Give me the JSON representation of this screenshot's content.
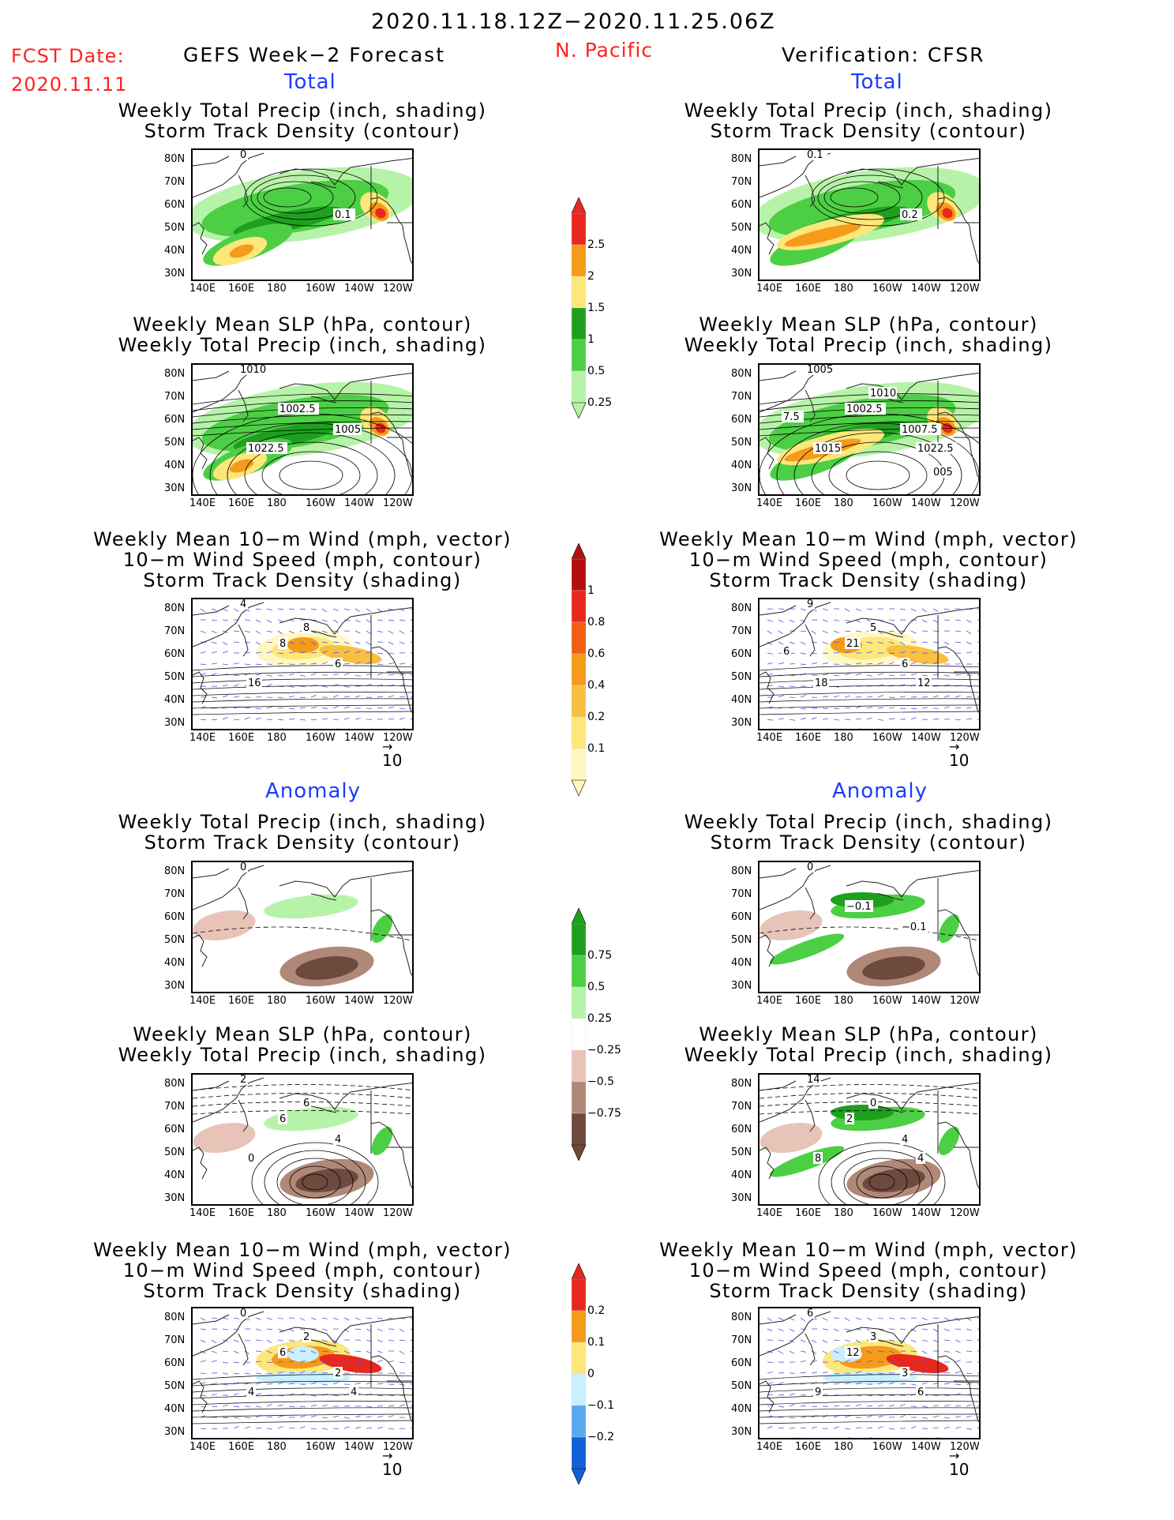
{
  "header": {
    "period": "2020.11.18.12Z−2020.11.25.06Z",
    "fcst_label": "FCST Date:",
    "fcst_date": "2020.11.11",
    "left_title": "GEFS Week−2 Forecast",
    "region": "N. Pacific",
    "right_title": "Verification: CFSR",
    "total_label": "Total",
    "anomaly_label": "Anomaly"
  },
  "titles": {
    "precip_track": [
      "Weekly Total Precip (inch, shading)",
      "Storm Track Density (contour)"
    ],
    "slp_precip": [
      "Weekly Mean SLP (hPa, contour)",
      "Weekly Total Precip (inch, shading)"
    ],
    "wind_track": [
      "Weekly Mean 10−m Wind (mph, vector)",
      "10−m Wind Speed (mph, contour)",
      "Storm Track Density (shading)"
    ]
  },
  "axes": {
    "lat_ticks": [
      "80N",
      "70N",
      "60N",
      "50N",
      "40N",
      "30N"
    ],
    "lon_ticks": [
      "140E",
      "160E",
      "180",
      "160W",
      "140W",
      "120W"
    ],
    "vector_ref": "10"
  },
  "panel_labels": {
    "l1": [
      "0",
      "0.1"
    ],
    "r1": [
      "0.1",
      "0.2"
    ],
    "l2": [
      "1010",
      "1005",
      "1002.5",
      "1022.5"
    ],
    "r2": [
      "1005",
      "1007.5",
      "1002.5",
      "1015",
      "1010",
      "1022.5",
      "7.5",
      "005"
    ],
    "l3": [
      "4",
      "6",
      "8",
      "16",
      "8"
    ],
    "r3": [
      "9",
      "6",
      "21",
      "18",
      "5",
      "12",
      "6"
    ],
    "l4": [
      "0"
    ],
    "r4": [
      "0",
      "−0.1",
      "−0.1"
    ],
    "l5": [
      "2",
      "4",
      "6",
      "0",
      "6"
    ],
    "r5": [
      "14",
      "4",
      "2",
      "8",
      "0",
      "4"
    ],
    "l6": [
      "0",
      "2",
      "6",
      "4",
      "2",
      "4"
    ],
    "r6": [
      "6",
      "3",
      "12",
      "9",
      "3",
      "6"
    ]
  },
  "colorbars": {
    "precip_total": {
      "labels": [
        "2.5",
        "2",
        "1.5",
        "1",
        "0.5",
        "0.25"
      ],
      "colors": [
        "#e8281e",
        "#f59a1a",
        "#fde77a",
        "#1ea01e",
        "#4ccf44",
        "#b6f3a8"
      ]
    },
    "track_total": {
      "labels": [
        "1",
        "0.8",
        "0.6",
        "0.4",
        "0.2",
        "0.1"
      ],
      "colors": [
        "#b40f0f",
        "#e8281e",
        "#f06010",
        "#f59a1a",
        "#f8bf40",
        "#fde77a",
        "#fff8c0"
      ]
    },
    "precip_anom": {
      "labels": [
        "0.75",
        "0.5",
        "0.25",
        "−0.25",
        "−0.5",
        "−0.75"
      ],
      "colors": [
        "#1ea01e",
        "#4ccf44",
        "#b6f3a8",
        "#ffffff",
        "#e8c4b8",
        "#b08878",
        "#6e4a3e"
      ]
    },
    "track_anom": {
      "labels": [
        "0.2",
        "0.1",
        "0",
        "−0.1",
        "−0.2"
      ],
      "colors": [
        "#e8281e",
        "#f59a1a",
        "#fde77a",
        "#c8f0ff",
        "#58a8f0",
        "#1060d8"
      ]
    }
  }
}
